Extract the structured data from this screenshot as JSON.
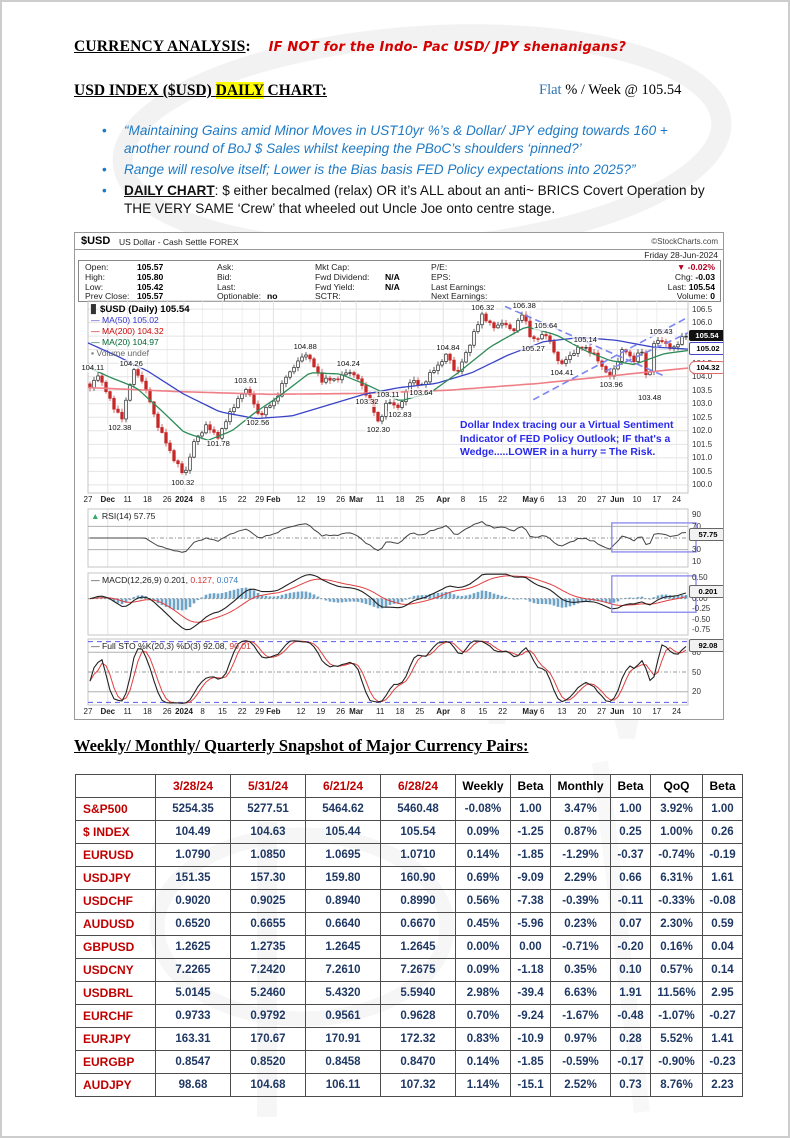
{
  "page": {
    "title": "CURRENCY ANALYSIS",
    "title_colon": ":",
    "title_note": "IF NOT for the Indo- Pac USD/ JPY shenanigans?",
    "sub_pre": "USD INDEX ($USD) ",
    "sub_daily": "DAILY",
    "sub_post": " CHART:",
    "week_flat": "Flat",
    "week_rest": " % / Week @ 105.54",
    "bullets": [
      "“Maintaining Gains amid Minor Moves in UST10yr %’s & Dollar/ JPY edging towards 160 + another round of BoJ $ Sales whilst keeping the PBoC’s shoulders ‘pinned?’",
      "Range will resolve itself; Lower is the Bias basis FED Policy expectations into 2025?”"
    ],
    "bullet3_lead": "DAILY CHART",
    "bullet3_rest": ": $ either becalmed (relax) OR it’s ALL about an anti~ BRICS Covert Operation by THE VERY SAME ‘Crew’ that wheeled out Uncle Joe onto centre stage."
  },
  "chart": {
    "symbol": "$USD",
    "name": "US Dollar - Cash Settle FOREX",
    "credit": "©StockCharts.com",
    "date": "Friday 28-Jun-2024",
    "quote_cols": [
      {
        "x": 6,
        "lw": 52,
        "rows": [
          [
            "Open:",
            "105.57"
          ],
          [
            "High:",
            "105.80"
          ],
          [
            "Low:",
            "105.42"
          ],
          [
            "Prev Close:",
            "105.57"
          ]
        ]
      },
      {
        "x": 138,
        "lw": 50,
        "rows": [
          [
            "Ask:",
            ""
          ],
          [
            "Bid:",
            ""
          ],
          [
            "Last:",
            ""
          ],
          [
            "Optionable:",
            "no"
          ]
        ]
      },
      {
        "x": 236,
        "lw": 70,
        "rows": [
          [
            "Mkt Cap:",
            ""
          ],
          [
            "Fwd Dividend:",
            "N/A"
          ],
          [
            "Fwd Yield:",
            "N/A"
          ],
          [
            "SCTR:",
            ""
          ]
        ]
      },
      {
        "x": 352,
        "lw": 74,
        "rows": [
          [
            "P/E:",
            ""
          ],
          [
            "EPS:",
            ""
          ],
          [
            "Last Earnings:",
            ""
          ],
          [
            "Next Earnings:",
            ""
          ]
        ]
      }
    ],
    "quote_right": [
      [
        "",
        "▼ -0.02%"
      ],
      [
        "Chg:",
        "-0.03"
      ],
      [
        "Last:",
        "105.54"
      ],
      [
        "Volume:",
        "0"
      ]
    ],
    "legend_main": [
      {
        "chip": "▊",
        "color": "#333",
        "text": "$USD (Daily) 105.54",
        "tcolor": "#000",
        "bold": true
      },
      {
        "chip": "—",
        "color": "#3333cc",
        "text": "MA(50) 105.02",
        "tcolor": "#3333cc"
      },
      {
        "chip": "—",
        "color": "#cc0000",
        "text": "MA(200) 104.32",
        "tcolor": "#cc0000"
      },
      {
        "chip": "—",
        "color": "#006633",
        "text": "MA(20) 104.97",
        "tcolor": "#006633"
      },
      {
        "chip": "▪",
        "color": "#777",
        "text": "Volume undef",
        "tcolor": "#666"
      }
    ]
  },
  "chart_data": {
    "type": "candlestick",
    "symbol": "$USD",
    "timeframe": "Daily",
    "last_close": 105.54,
    "price_axis": {
      "min": 100.0,
      "max": 106.5,
      "step": 0.5
    },
    "x_ticks": [
      {
        "f": 0.0,
        "t": "27"
      },
      {
        "f": 0.033,
        "t": "Dec",
        "b": 1
      },
      {
        "f": 0.066,
        "t": "11"
      },
      {
        "f": 0.099,
        "t": "18"
      },
      {
        "f": 0.132,
        "t": "26"
      },
      {
        "f": 0.16,
        "t": "2024",
        "b": 1
      },
      {
        "f": 0.191,
        "t": "8"
      },
      {
        "f": 0.224,
        "t": "15"
      },
      {
        "f": 0.257,
        "t": "22"
      },
      {
        "f": 0.286,
        "t": "29"
      },
      {
        "f": 0.309,
        "t": "Feb",
        "b": 1
      },
      {
        "f": 0.355,
        "t": "12"
      },
      {
        "f": 0.388,
        "t": "19"
      },
      {
        "f": 0.421,
        "t": "26"
      },
      {
        "f": 0.447,
        "t": "Mar",
        "b": 1
      },
      {
        "f": 0.487,
        "t": "11"
      },
      {
        "f": 0.52,
        "t": "18"
      },
      {
        "f": 0.553,
        "t": "25"
      },
      {
        "f": 0.592,
        "t": "Apr",
        "b": 1
      },
      {
        "f": 0.625,
        "t": "8"
      },
      {
        "f": 0.658,
        "t": "15"
      },
      {
        "f": 0.691,
        "t": "22"
      },
      {
        "f": 0.737,
        "t": "May",
        "b": 1
      },
      {
        "f": 0.757,
        "t": "6"
      },
      {
        "f": 0.79,
        "t": "13"
      },
      {
        "f": 0.823,
        "t": "20"
      },
      {
        "f": 0.856,
        "t": "27"
      },
      {
        "f": 0.882,
        "t": "Jun",
        "b": 1
      },
      {
        "f": 0.915,
        "t": "10"
      },
      {
        "f": 0.948,
        "t": "17"
      },
      {
        "f": 0.981,
        "t": "24"
      }
    ],
    "close_anchors": [
      [
        0,
        103.55
      ],
      [
        0.013,
        104.11
      ],
      [
        0.03,
        103.3
      ],
      [
        0.053,
        102.38
      ],
      [
        0.072,
        104.26
      ],
      [
        0.09,
        103.8
      ],
      [
        0.11,
        102.4
      ],
      [
        0.135,
        101.2
      ],
      [
        0.158,
        100.32
      ],
      [
        0.175,
        101.6
      ],
      [
        0.195,
        102.2
      ],
      [
        0.205,
        101.95
      ],
      [
        0.217,
        101.78
      ],
      [
        0.235,
        102.7
      ],
      [
        0.263,
        103.61
      ],
      [
        0.283,
        102.56
      ],
      [
        0.31,
        103.1
      ],
      [
        0.33,
        104.05
      ],
      [
        0.362,
        104.88
      ],
      [
        0.39,
        103.85
      ],
      [
        0.42,
        103.95
      ],
      [
        0.434,
        104.24
      ],
      [
        0.45,
        103.9
      ],
      [
        0.465,
        103.32
      ],
      [
        0.484,
        102.3
      ],
      [
        0.5,
        103.11
      ],
      [
        0.52,
        102.83
      ],
      [
        0.538,
        103.9
      ],
      [
        0.555,
        103.64
      ],
      [
        0.575,
        104.2
      ],
      [
        0.6,
        104.84
      ],
      [
        0.615,
        104.05
      ],
      [
        0.635,
        105.1
      ],
      [
        0.658,
        106.32
      ],
      [
        0.675,
        105.8
      ],
      [
        0.69,
        106.0
      ],
      [
        0.71,
        105.7
      ],
      [
        0.727,
        106.38
      ],
      [
        0.742,
        105.27
      ],
      [
        0.763,
        105.64
      ],
      [
        0.79,
        104.41
      ],
      [
        0.81,
        104.9
      ],
      [
        0.829,
        105.14
      ],
      [
        0.85,
        104.7
      ],
      [
        0.872,
        103.96
      ],
      [
        0.895,
        105.05
      ],
      [
        0.912,
        104.6
      ],
      [
        0.928,
        105.0
      ],
      [
        0.936,
        103.48
      ],
      [
        0.944,
        105.1
      ],
      [
        0.955,
        105.43
      ],
      [
        0.975,
        105.0
      ],
      [
        1,
        105.54
      ]
    ],
    "ma20_anchors": [
      [
        0,
        104.35
      ],
      [
        0.04,
        103.95
      ],
      [
        0.08,
        103.6
      ],
      [
        0.12,
        102.8
      ],
      [
        0.16,
        101.95
      ],
      [
        0.2,
        101.65
      ],
      [
        0.24,
        102.0
      ],
      [
        0.28,
        102.7
      ],
      [
        0.32,
        103.3
      ],
      [
        0.37,
        104.15
      ],
      [
        0.42,
        104.1
      ],
      [
        0.47,
        103.65
      ],
      [
        0.52,
        103.1
      ],
      [
        0.57,
        103.4
      ],
      [
        0.62,
        104.2
      ],
      [
        0.67,
        105.1
      ],
      [
        0.73,
        105.85
      ],
      [
        0.78,
        105.55
      ],
      [
        0.83,
        104.95
      ],
      [
        0.87,
        104.6
      ],
      [
        0.91,
        104.45
      ],
      [
        0.96,
        104.85
      ],
      [
        1,
        104.97
      ]
    ],
    "ma50_anchors": [
      [
        0,
        105.25
      ],
      [
        0.05,
        104.75
      ],
      [
        0.1,
        104.2
      ],
      [
        0.16,
        103.35
      ],
      [
        0.22,
        102.7
      ],
      [
        0.28,
        102.45
      ],
      [
        0.34,
        102.55
      ],
      [
        0.4,
        102.95
      ],
      [
        0.46,
        103.35
      ],
      [
        0.52,
        103.6
      ],
      [
        0.58,
        103.75
      ],
      [
        0.64,
        104.15
      ],
      [
        0.7,
        104.8
      ],
      [
        0.76,
        105.3
      ],
      [
        0.82,
        105.45
      ],
      [
        0.88,
        105.35
      ],
      [
        0.94,
        105.1
      ],
      [
        1,
        105.02
      ]
    ],
    "ma200_anchors": [
      [
        0,
        103.6
      ],
      [
        0.15,
        103.45
      ],
      [
        0.3,
        103.35
      ],
      [
        0.45,
        103.38
      ],
      [
        0.6,
        103.5
      ],
      [
        0.75,
        103.75
      ],
      [
        0.88,
        104.05
      ],
      [
        1,
        104.32
      ]
    ],
    "point_labels": [
      {
        "f": 0.008,
        "p": 104.11,
        "t": "104.11",
        "pos": "a"
      },
      {
        "f": 0.072,
        "p": 104.26,
        "t": "104.26",
        "pos": "a"
      },
      {
        "f": 0.053,
        "p": 102.38,
        "t": "102.38",
        "pos": "b"
      },
      {
        "f": 0.158,
        "p": 100.32,
        "t": "100.32",
        "pos": "b"
      },
      {
        "f": 0.217,
        "p": 101.78,
        "t": "101.78",
        "pos": "b"
      },
      {
        "f": 0.263,
        "p": 103.61,
        "t": "103.61",
        "pos": "a"
      },
      {
        "f": 0.283,
        "p": 102.56,
        "t": "102.56",
        "pos": "b"
      },
      {
        "f": 0.362,
        "p": 104.88,
        "t": "104.88",
        "pos": "a"
      },
      {
        "f": 0.434,
        "p": 104.24,
        "t": "104.24",
        "pos": "a"
      },
      {
        "f": 0.465,
        "p": 103.32,
        "t": "103.32",
        "pos": "b"
      },
      {
        "f": 0.484,
        "p": 102.3,
        "t": "102.30",
        "pos": "b"
      },
      {
        "f": 0.5,
        "p": 103.11,
        "t": "103.11",
        "pos": "a"
      },
      {
        "f": 0.52,
        "p": 102.83,
        "t": "102.83",
        "pos": "b"
      },
      {
        "f": 0.555,
        "p": 103.64,
        "t": "103.64",
        "pos": "b"
      },
      {
        "f": 0.6,
        "p": 104.84,
        "t": "104.84",
        "pos": "a"
      },
      {
        "f": 0.658,
        "p": 106.32,
        "t": "106.32",
        "pos": "a"
      },
      {
        "f": 0.727,
        "p": 106.38,
        "t": "106.38",
        "pos": "a"
      },
      {
        "f": 0.742,
        "p": 105.27,
        "t": "105.27",
        "pos": "b"
      },
      {
        "f": 0.763,
        "p": 105.64,
        "t": "105.64",
        "pos": "a"
      },
      {
        "f": 0.79,
        "p": 104.41,
        "t": "104.41",
        "pos": "b"
      },
      {
        "f": 0.829,
        "p": 105.14,
        "t": "105.14",
        "pos": "a"
      },
      {
        "f": 0.872,
        "p": 103.96,
        "t": "103.96",
        "pos": "b"
      },
      {
        "f": 0.936,
        "p": 103.48,
        "t": "103.48",
        "pos": "b"
      },
      {
        "f": 0.955,
        "p": 105.43,
        "t": "105.43",
        "pos": "a"
      }
    ],
    "trendlines": [
      [
        0.695,
        106.6,
        0.958,
        104.05
      ],
      [
        0.742,
        103.15,
        1.0,
        106.2
      ],
      [
        0.862,
        104.2,
        1.0,
        105.62
      ]
    ],
    "indicators": {
      "rsi": {
        "label": "RSI(14)",
        "value": "57.75",
        "ticks": [
          90,
          70,
          50,
          30,
          10
        ],
        "tag": "57.75",
        "tag_v": 57.75
      },
      "macd": {
        "label": "MACD(12,26,9)",
        "values": [
          "0.201,",
          "0.127,",
          "0.074"
        ],
        "tick_labels": [
          "0.50",
          "0.25",
          "0.00",
          "-0.25",
          "-0.50",
          "-0.75"
        ],
        "tick_vals": [
          0.5,
          0.25,
          0,
          -0.25,
          -0.5,
          -0.75
        ],
        "tag": "0.201",
        "tag_v": 0.201
      },
      "sto": {
        "label": "Full STO %K(20,3) %D(3)",
        "values": [
          "92.08,",
          "90.01"
        ],
        "ticks": [
          80,
          50,
          20
        ],
        "tag": "92.08",
        "tag_v": 92.08
      }
    },
    "price_tags": [
      {
        "t": "105.54",
        "style": "black",
        "p": 105.54
      },
      {
        "t": "105.02",
        "style": "blue",
        "p": 105.02
      },
      {
        "t": "104.32",
        "style": "red",
        "p": 104.32
      }
    ],
    "annotation": "Dollar Index tracing our a Virtual Sentiment Indicator of FED Policy Outlook; IF that's a Wedge.....LOWER in a hurry = The Risk.",
    "colors": {
      "up": "#ffffff",
      "up_edge": "#222222",
      "down": "#c62828",
      "ma20": "#2e8b57",
      "ma50": "#3944c7",
      "ma200": "#ef7f86",
      "hist": "#6fa4c9",
      "trend": "#7b86f2",
      "anno": "#2a2aee"
    }
  },
  "snapshot": {
    "title": "Weekly/ Monthly/ Quarterly Snapshot of Major Currency Pairs:",
    "columns": [
      "",
      "3/28/24",
      "5/31/24",
      "6/21/24",
      "6/28/24",
      "Weekly",
      "Beta",
      "Monthly",
      "Beta",
      "QoQ",
      "Beta"
    ],
    "rows": [
      {
        "label": "S&P500",
        "values": [
          "5254.35",
          "5277.51",
          "5464.62",
          "5460.48",
          "-0.08%",
          "1.00",
          "3.47%",
          "1.00",
          "3.92%",
          "1.00"
        ]
      },
      {
        "label": "$ INDEX",
        "values": [
          "104.49",
          "104.63",
          "105.44",
          "105.54",
          "0.09%",
          "-1.25",
          "0.87%",
          "0.25",
          "1.00%",
          "0.26"
        ]
      },
      {
        "label": "EURUSD",
        "values": [
          "1.0790",
          "1.0850",
          "1.0695",
          "1.0710",
          "0.14%",
          "-1.85",
          "-1.29%",
          "-0.37",
          "-0.74%",
          "-0.19"
        ]
      },
      {
        "label": "USDJPY",
        "values": [
          "151.35",
          "157.30",
          "159.80",
          "160.90",
          "0.69%",
          "-9.09",
          "2.29%",
          "0.66",
          "6.31%",
          "1.61"
        ]
      },
      {
        "label": "USDCHF",
        "values": [
          "0.9020",
          "0.9025",
          "0.8940",
          "0.8990",
          "0.56%",
          "-7.38",
          "-0.39%",
          "-0.11",
          "-0.33%",
          "-0.08"
        ]
      },
      {
        "label": "AUDUSD",
        "values": [
          "0.6520",
          "0.6655",
          "0.6640",
          "0.6670",
          "0.45%",
          "-5.96",
          "0.23%",
          "0.07",
          "2.30%",
          "0.59"
        ]
      },
      {
        "label": "GBPUSD",
        "values": [
          "1.2625",
          "1.2735",
          "1.2645",
          "1.2645",
          "0.00%",
          "0.00",
          "-0.71%",
          "-0.20",
          "0.16%",
          "0.04"
        ]
      },
      {
        "label": "USDCNY",
        "values": [
          "7.2265",
          "7.2420",
          "7.2610",
          "7.2675",
          "0.09%",
          "-1.18",
          "0.35%",
          "0.10",
          "0.57%",
          "0.14"
        ]
      },
      {
        "label": "USDBRL",
        "values": [
          "5.0145",
          "5.2460",
          "5.4320",
          "5.5940",
          "2.98%",
          "-39.4",
          "6.63%",
          "1.91",
          "11.56%",
          "2.95"
        ]
      },
      {
        "label": "EURCHF",
        "values": [
          "0.9733",
          "0.9792",
          "0.9561",
          "0.9628",
          "0.70%",
          "-9.24",
          "-1.67%",
          "-0.48",
          "-1.07%",
          "-0.27"
        ]
      },
      {
        "label": "EURJPY",
        "values": [
          "163.31",
          "170.67",
          "170.91",
          "172.32",
          "0.83%",
          "-10.9",
          "0.97%",
          "0.28",
          "5.52%",
          "1.41"
        ]
      },
      {
        "label": "EURGBP",
        "values": [
          "0.8547",
          "0.8520",
          "0.8458",
          "0.8470",
          "0.14%",
          "-1.85",
          "-0.59%",
          "-0.17",
          "-0.90%",
          "-0.23"
        ]
      },
      {
        "label": "AUDJPY",
        "values": [
          "98.68",
          "104.68",
          "106.11",
          "107.32",
          "1.14%",
          "-15.1",
          "2.52%",
          "0.73",
          "8.76%",
          "2.23"
        ]
      }
    ]
  }
}
